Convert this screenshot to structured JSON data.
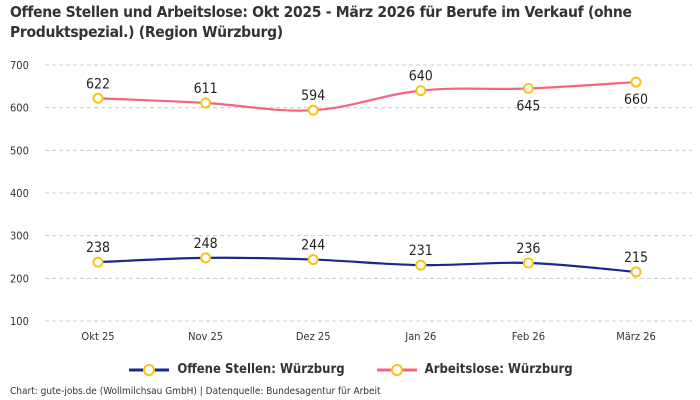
{
  "title": "Offene Stellen und Arbeitslose: Okt 2025 - März 2026 für Berufe im Verkauf (ohne Produktspezial.) (Region Würzburg)",
  "source": "Chart: gute-jobs.de (Wollmilchsau GmbH) | Datenquelle: Bundesagentur für Arbeit",
  "chart_data": {
    "type": "line",
    "title": "Offene Stellen und Arbeitslose: Okt 2025 - März 2026 für Berufe im Verkauf (ohne Produktspezial.) (Region Würzburg)",
    "categories": [
      "Okt 25",
      "Nov 25",
      "Dez 25",
      "Jan 26",
      "Feb 26",
      "März 26"
    ],
    "y_ticks": [
      100,
      200,
      300,
      400,
      500,
      600,
      700
    ],
    "ylim": [
      100,
      700
    ],
    "grid": true,
    "legend_position": "bottom",
    "marker_color": "#f5c518",
    "series": [
      {
        "name": "Offene Stellen: Würzburg",
        "color": "#1a2a8a",
        "values": [
          238,
          248,
          244,
          231,
          236,
          215
        ]
      },
      {
        "name": "Arbeitslose: Würzburg",
        "color": "#f7647e",
        "values": [
          622,
          611,
          594,
          640,
          645,
          660
        ]
      }
    ]
  }
}
